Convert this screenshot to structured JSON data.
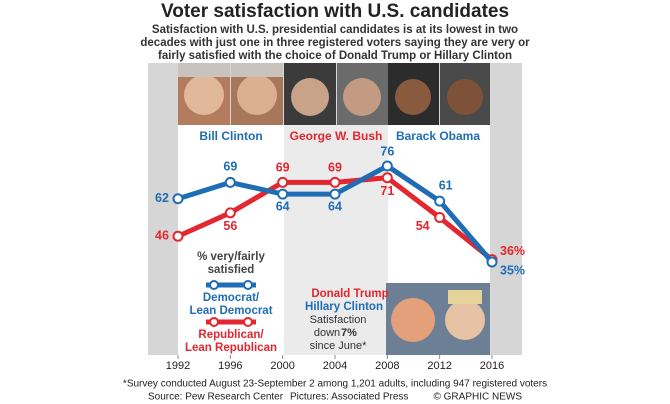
{
  "chart_data": {
    "type": "line",
    "title": "Voter satisfaction with U.S. candidates",
    "subtitle": [
      "Satisfaction with U.S. presidential candidates is at its lowest in two",
      "decades with just one in three registered voters saying they are very or",
      "fairly satisfied with the choice of Donald Trump or Hillary Clinton"
    ],
    "x": [
      1992,
      1996,
      2000,
      2004,
      2008,
      2012,
      2016
    ],
    "series": [
      {
        "name": "Democrat/Lean Democrat",
        "color": "#1f6db4",
        "values": [
          62,
          69,
          64,
          64,
          76,
          61,
          35
        ],
        "value_labels": [
          "62",
          "69",
          "64",
          "64",
          "76",
          "61",
          "35%"
        ]
      },
      {
        "name": "Republican/Lean Republican",
        "color": "#e3262f",
        "values": [
          46,
          56,
          69,
          69,
          71,
          54,
          36
        ],
        "value_labels": [
          "46",
          "56",
          "69",
          "69",
          "71",
          "54",
          "36%"
        ]
      }
    ],
    "presidents": [
      "Bill Clinton",
      "George W. Bush",
      "Barack Obama"
    ],
    "legend_title": [
      "% very/fairly",
      "satisfied"
    ],
    "note_names": [
      "Donald Trump",
      "Hillary Clinton"
    ],
    "note": [
      "Satisfaction",
      "down",
      "7%",
      "since June*"
    ],
    "footnote": "*Survey conducted August 23-September 2 among 1,201 adults, including 947 registered voters",
    "source": "Source: Pew Research Center",
    "pictures": "Pictures: Associated Press",
    "credit": "© GRAPHIC NEWS"
  }
}
